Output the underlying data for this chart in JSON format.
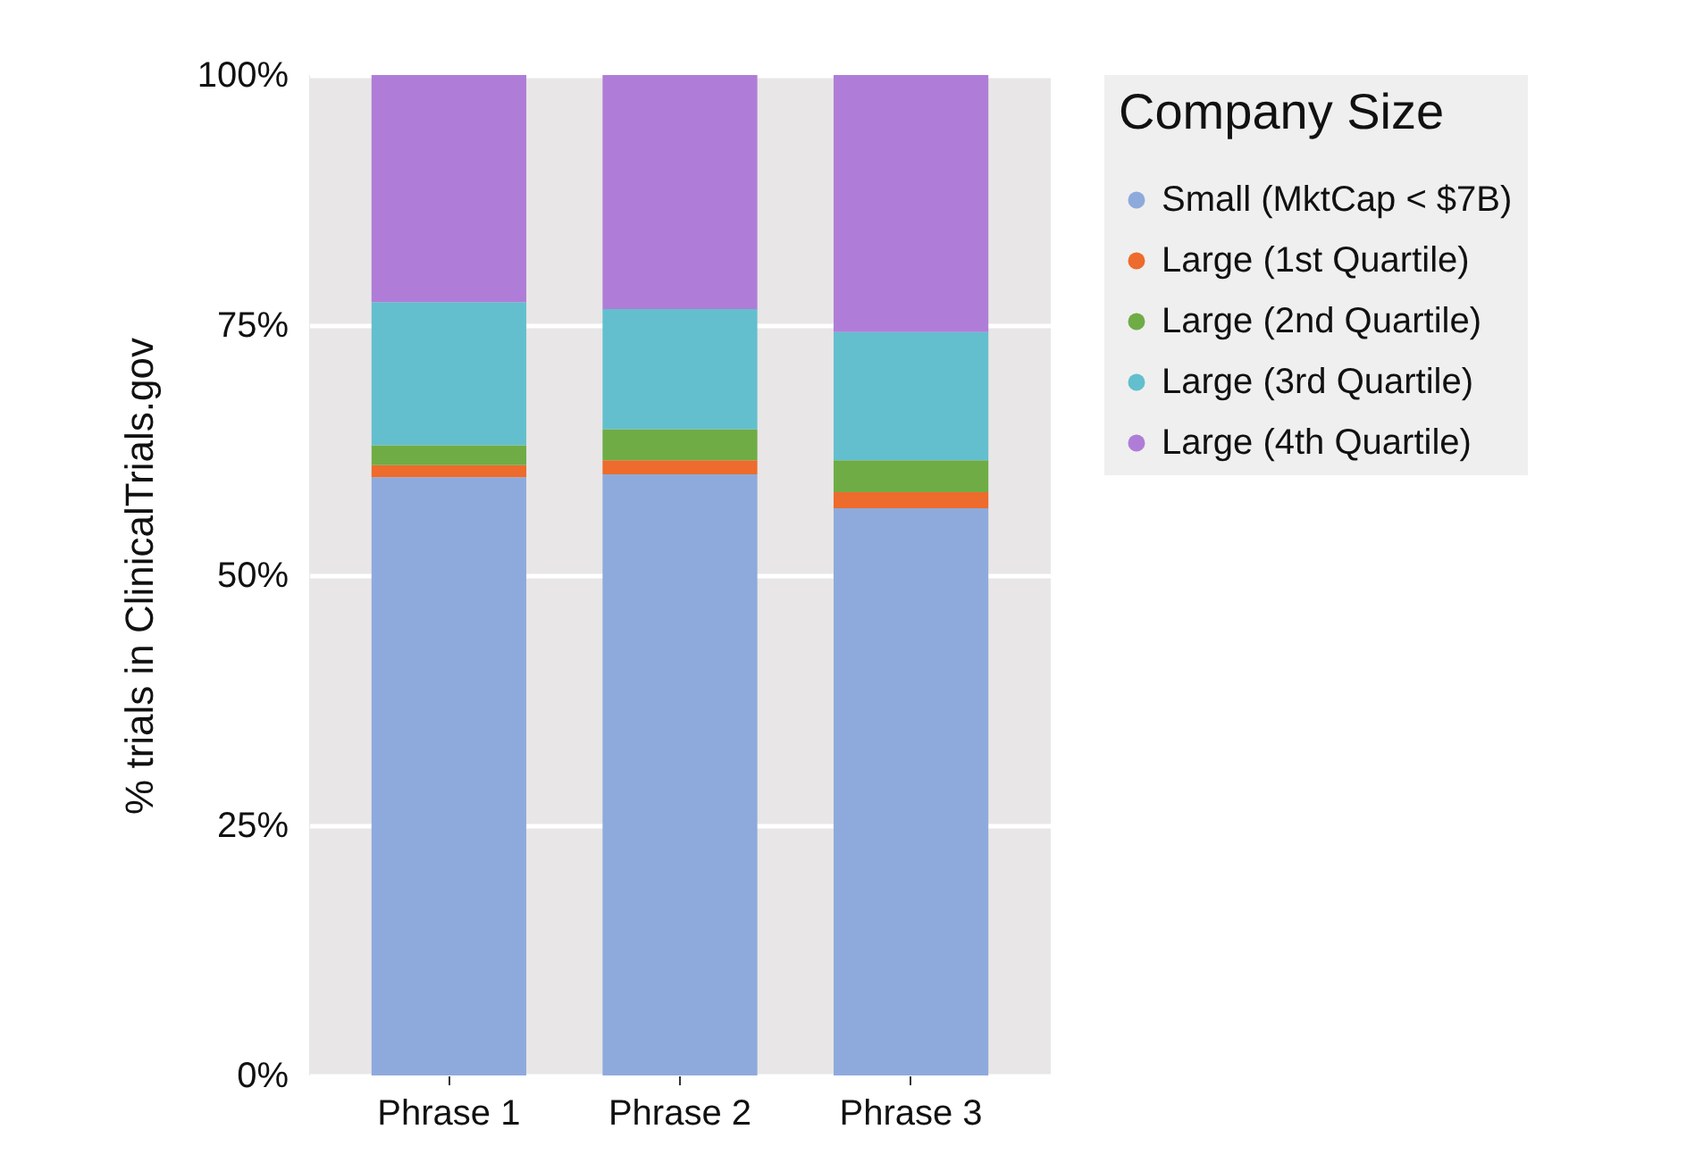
{
  "chart_data": {
    "type": "bar",
    "stacked": true,
    "ylabel": "% trials in ClinicalTrials.gov",
    "legend_title": "Company Size",
    "legend": "right",
    "grid": "y",
    "categories": [
      "Phrase 1",
      "Phrase 2",
      "Phrase 3"
    ],
    "series": [
      {
        "name": "Small (MktCap < $7B)",
        "color": "#8eaadc",
        "values": [
          59.8,
          60.1,
          56.7
        ]
      },
      {
        "name": "Large (1st Quartile)",
        "color": "#ed6b2c",
        "values": [
          1.2,
          1.4,
          1.6
        ]
      },
      {
        "name": "Large (2nd Quartile)",
        "color": "#6fac46",
        "values": [
          2.0,
          3.1,
          3.2
        ]
      },
      {
        "name": "Large (3rd Quartile)",
        "color": "#63bfcd",
        "values": [
          14.3,
          12.0,
          12.8
        ]
      },
      {
        "name": "Large (4th Quartile)",
        "color": "#af7dd8",
        "values": [
          22.7,
          23.4,
          25.7
        ]
      }
    ],
    "ylim": [
      0,
      100
    ],
    "yticks": [
      {
        "value": 0,
        "label": "0%"
      },
      {
        "value": 25,
        "label": "25%"
      },
      {
        "value": 50,
        "label": "50%"
      },
      {
        "value": 75,
        "label": "75%"
      },
      {
        "value": 100,
        "label": "100%"
      }
    ]
  }
}
